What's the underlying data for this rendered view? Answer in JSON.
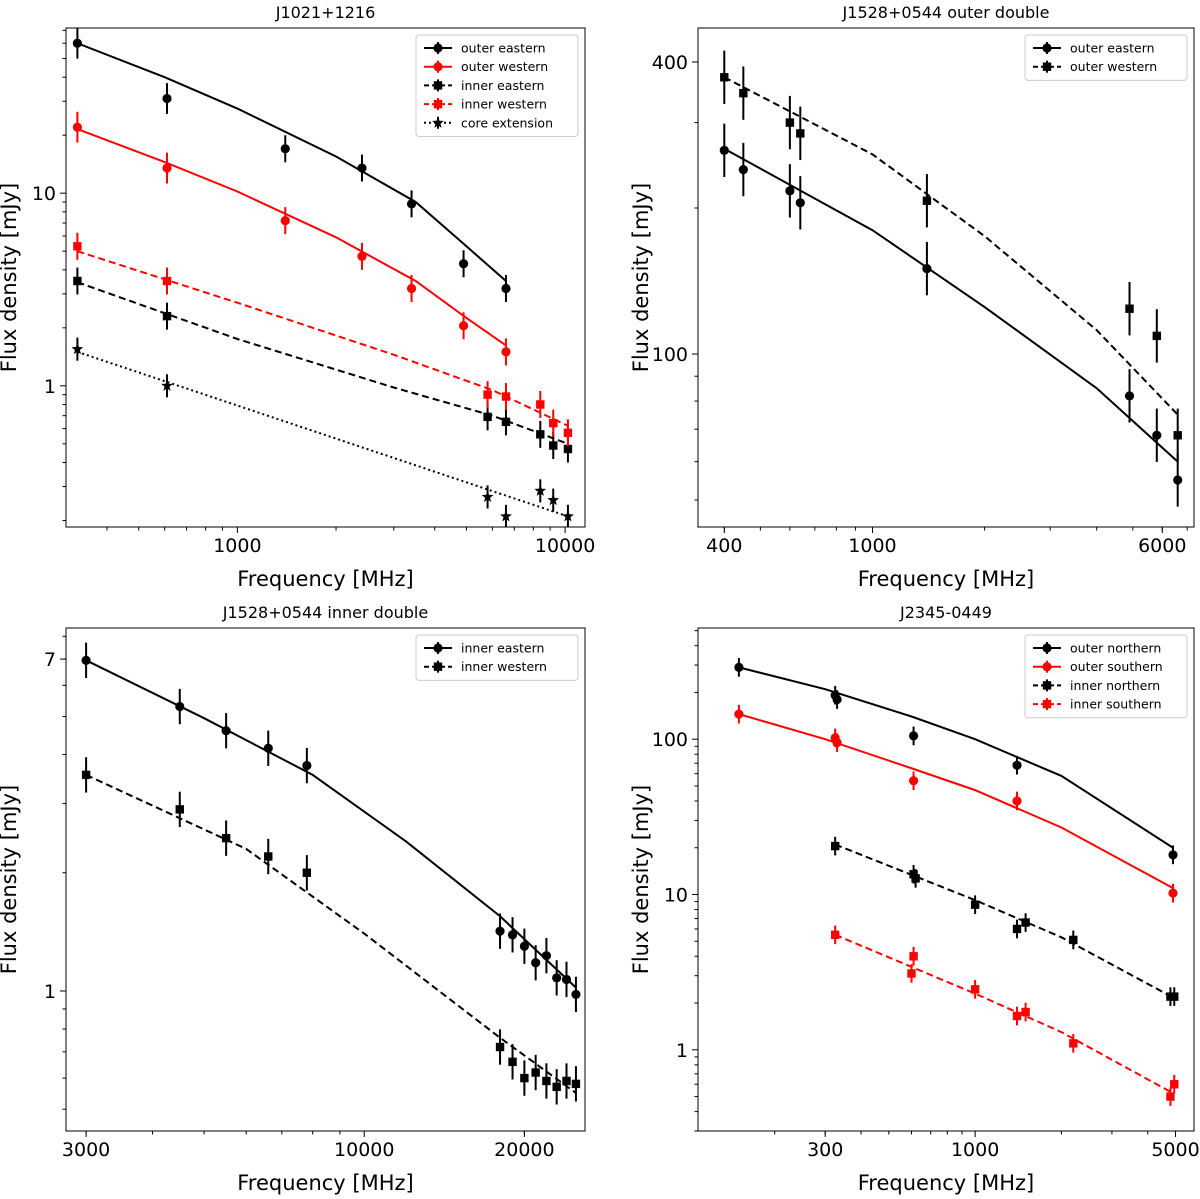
{
  "figure": {
    "description": "Radio spectra of double-double radio galaxies"
  },
  "chart_data": [
    {
      "type": "scatter",
      "title": "J1021+1216",
      "xlabel": "Frequency [MHz]",
      "ylabel": "Flux density [mJy]",
      "xscale": "log",
      "yscale": "log",
      "xlim": [
        300,
        11500
      ],
      "ylim": [
        0.185,
        72
      ],
      "xticks": [
        {
          "v": 1000,
          "label": "1000"
        },
        {
          "v": 10000,
          "label": "10000"
        }
      ],
      "yticks": [
        {
          "v": 1,
          "label": "1"
        },
        {
          "v": 10,
          "label": "10"
        }
      ],
      "legend_position": "top-right",
      "series": [
        {
          "name": "outer eastern",
          "color": "#000000",
          "marker": "circle",
          "line": "solid",
          "x": [
            325,
            610,
            1400,
            2400,
            3400,
            4900,
            6600
          ],
          "y": [
            60,
            31,
            17,
            13.5,
            8.8,
            4.3,
            3.2
          ],
          "err": [
            0.08,
            0.08,
            0.07,
            0.07,
            0.07,
            0.07,
            0.07
          ],
          "fit_x": [
            325,
            600,
            1000,
            2000,
            3500,
            5000,
            6600
          ],
          "fit_y": [
            60,
            40,
            27.5,
            15.5,
            9,
            5.3,
            3.5
          ]
        },
        {
          "name": "outer western",
          "color": "#ff0000",
          "marker": "circle",
          "line": "solid",
          "x": [
            325,
            610,
            1400,
            2400,
            3400,
            4900,
            6600
          ],
          "y": [
            22,
            13.5,
            7.2,
            4.7,
            3.2,
            2.05,
            1.5
          ],
          "err": [
            0.08,
            0.08,
            0.07,
            0.07,
            0.07,
            0.07,
            0.07
          ],
          "fit_x": [
            325,
            600,
            1000,
            2000,
            3500,
            5000,
            6600
          ],
          "fit_y": [
            21.5,
            14.5,
            10.2,
            5.9,
            3.5,
            2.25,
            1.62
          ]
        },
        {
          "name": "inner eastern",
          "color": "#000000",
          "marker": "square",
          "line": "dashed",
          "x": [
            325,
            610,
            5800,
            6600,
            8400,
            9200,
            10200
          ],
          "y": [
            3.5,
            2.3,
            0.69,
            0.65,
            0.56,
            0.49,
            0.47
          ],
          "err": [
            0.07,
            0.07,
            0.07,
            0.07,
            0.07,
            0.07,
            0.07
          ],
          "fit_x": [
            325,
            1000,
            3000,
            6000,
            10200
          ],
          "fit_y": [
            3.45,
            1.75,
            0.98,
            0.7,
            0.5
          ]
        },
        {
          "name": "inner western",
          "color": "#ff0000",
          "marker": "square",
          "line": "dashed",
          "x": [
            325,
            610,
            5800,
            6600,
            8400,
            9200,
            10200
          ],
          "y": [
            5.3,
            3.5,
            0.9,
            0.88,
            0.8,
            0.64,
            0.57
          ],
          "err": [
            0.07,
            0.07,
            0.07,
            0.07,
            0.07,
            0.07,
            0.07
          ],
          "fit_x": [
            325,
            1000,
            3000,
            6000,
            10200
          ],
          "fit_y": [
            5.0,
            2.7,
            1.45,
            0.95,
            0.62
          ]
        },
        {
          "name": "core extension",
          "color": "#000000",
          "marker": "star",
          "line": "dotted",
          "x": [
            325,
            610,
            5800,
            6600,
            8400,
            9200,
            10200
          ],
          "y": [
            1.55,
            1.0,
            0.265,
            0.21,
            0.285,
            0.255,
            0.21
          ],
          "err": [
            0.06,
            0.06,
            0.06,
            0.06,
            0.06,
            0.06,
            0.06
          ],
          "fit_x": [
            325,
            10200
          ],
          "fit_y": [
            1.5,
            0.21
          ]
        }
      ]
    },
    {
      "type": "scatter",
      "title": "J1528+0544 outer double",
      "xlabel": "Frequency [MHz]",
      "ylabel": "Flux density [mJy]",
      "xscale": "log",
      "yscale": "log",
      "xlim": [
        340,
        7300
      ],
      "ylim": [
        44,
        470
      ],
      "xticks": [
        {
          "v": 400,
          "label": "400"
        },
        {
          "v": 1000,
          "label": "1000"
        },
        {
          "v": 6000,
          "label": "6000"
        }
      ],
      "yticks": [
        {
          "v": 100,
          "label": "100"
        },
        {
          "v": 400,
          "label": "400"
        }
      ],
      "legend_position": "top-right",
      "series": [
        {
          "name": "outer eastern",
          "color": "#000000",
          "marker": "circle",
          "line": "solid",
          "x": [
            400,
            450,
            600,
            640,
            1400,
            4900,
            5800,
            6600
          ],
          "y": [
            263,
            240,
            217,
            205,
            150,
            82,
            68,
            55
          ],
          "err": [
            0.055,
            0.055,
            0.055,
            0.055,
            0.055,
            0.055,
            0.055,
            0.055
          ],
          "fit_x": [
            400,
            1000,
            2000,
            4000,
            6600
          ],
          "fit_y": [
            265,
            180,
            125,
            85,
            60
          ]
        },
        {
          "name": "outer western",
          "color": "#000000",
          "marker": "square",
          "line": "dashed",
          "x": [
            400,
            450,
            600,
            640,
            1400,
            4900,
            5800,
            6600
          ],
          "y": [
            372,
            345,
            300,
            285,
            207,
            124,
            109,
            68
          ],
          "err": [
            0.055,
            0.055,
            0.055,
            0.055,
            0.055,
            0.055,
            0.055,
            0.055
          ],
          "fit_x": [
            400,
            1000,
            2000,
            4000,
            6600
          ],
          "fit_y": [
            372,
            258,
            175,
            112,
            75
          ]
        }
      ]
    },
    {
      "type": "scatter",
      "title": "J1528+0544 inner double",
      "xlabel": "Frequency [MHz]",
      "ylabel": "Flux density [mJy]",
      "xscale": "log",
      "yscale": "log",
      "xlim": [
        2750,
        26000
      ],
      "ylim": [
        0.44,
        8.4
      ],
      "xticks": [
        {
          "v": 3000,
          "label": "3000"
        },
        {
          "v": 10000,
          "label": "10000"
        },
        {
          "v": 20000,
          "label": "20000"
        }
      ],
      "yticks": [
        {
          "v": 1,
          "label": "1"
        },
        {
          "v": 7,
          "label": "7"
        }
      ],
      "legend_position": "top-right",
      "series": [
        {
          "name": "inner eastern",
          "color": "#000000",
          "marker": "circle",
          "line": "solid",
          "x": [
            3000,
            4500,
            5500,
            6600,
            7800,
            18000,
            19000,
            20000,
            21000,
            22000,
            23000,
            24000,
            25000
          ],
          "y": [
            6.95,
            5.3,
            4.6,
            4.15,
            3.75,
            1.42,
            1.39,
            1.3,
            1.18,
            1.23,
            1.08,
            1.07,
            0.98
          ],
          "err": [
            0.045,
            0.045,
            0.045,
            0.045,
            0.045,
            0.045,
            0.045,
            0.045,
            0.045,
            0.045,
            0.045,
            0.045,
            0.045
          ],
          "fit_x": [
            3000,
            5000,
            8000,
            12000,
            18000,
            25000
          ],
          "fit_y": [
            6.95,
            4.95,
            3.55,
            2.4,
            1.55,
            1.02
          ]
        },
        {
          "name": "inner western",
          "color": "#000000",
          "marker": "square",
          "line": "dashed",
          "x": [
            3000,
            4500,
            5500,
            6600,
            7800,
            18000,
            19000,
            20000,
            21000,
            22000,
            23000,
            24000,
            25000
          ],
          "y": [
            3.55,
            2.9,
            2.45,
            2.2,
            2.0,
            0.72,
            0.66,
            0.6,
            0.62,
            0.59,
            0.57,
            0.59,
            0.58
          ],
          "err": [
            0.045,
            0.045,
            0.045,
            0.045,
            0.045,
            0.045,
            0.045,
            0.045,
            0.045,
            0.045,
            0.045,
            0.045,
            0.045
          ],
          "fit_x": [
            3000,
            6000,
            10000,
            18000,
            25000
          ],
          "fit_y": [
            3.55,
            2.3,
            1.4,
            0.76,
            0.55
          ]
        }
      ]
    },
    {
      "type": "scatter",
      "title": "J2345-0449",
      "xlabel": "Frequency [MHz]",
      "ylabel": "Flux density [mJy]",
      "xscale": "log",
      "yscale": "log",
      "xlim": [
        108,
        5800
      ],
      "ylim": [
        0.3,
        520
      ],
      "xticks": [
        {
          "v": 300,
          "label": "300"
        },
        {
          "v": 1000,
          "label": "1000"
        },
        {
          "v": 5000,
          "label": "5000"
        }
      ],
      "yticks": [
        {
          "v": 1,
          "label": "1"
        },
        {
          "v": 10,
          "label": "10"
        },
        {
          "v": 100,
          "label": "100"
        }
      ],
      "legend_position": "top-right",
      "series": [
        {
          "name": "outer northern",
          "color": "#000000",
          "marker": "circle",
          "line": "solid",
          "x": [
            150,
            325,
            330,
            610,
            1400,
            4900
          ],
          "y": [
            290,
            192,
            180,
            105,
            68,
            18
          ],
          "err": [
            0.06,
            0.06,
            0.06,
            0.06,
            0.06,
            0.06
          ],
          "fit_x": [
            150,
            300,
            600,
            1000,
            2000,
            4900
          ],
          "fit_y": [
            290,
            210,
            140,
            100,
            58,
            20
          ]
        },
        {
          "name": "outer southern",
          "color": "#ff0000",
          "marker": "circle",
          "line": "solid",
          "x": [
            150,
            325,
            330,
            610,
            1400,
            4900
          ],
          "y": [
            145,
            102,
            95,
            54,
            40,
            10.2
          ],
          "err": [
            0.06,
            0.06,
            0.06,
            0.06,
            0.06,
            0.06
          ],
          "fit_x": [
            150,
            300,
            600,
            1000,
            2000,
            4900
          ],
          "fit_y": [
            145,
            100,
            65,
            47,
            27,
            11
          ]
        },
        {
          "name": "inner northern",
          "color": "#000000",
          "marker": "square",
          "line": "dashed",
          "x": [
            325,
            610,
            620,
            1000,
            1400,
            1500,
            2200,
            4800,
            4950
          ],
          "y": [
            20.5,
            13.5,
            12.7,
            8.6,
            6.0,
            6.6,
            5.1,
            2.2,
            2.2
          ],
          "err": [
            0.06,
            0.06,
            0.06,
            0.06,
            0.06,
            0.06,
            0.06,
            0.06,
            0.06
          ],
          "fit_x": [
            325,
            1000,
            2000,
            4950
          ],
          "fit_y": [
            21,
            9.2,
            5.3,
            2.15
          ]
        },
        {
          "name": "inner southern",
          "color": "#ff0000",
          "marker": "square",
          "line": "dashed",
          "x": [
            325,
            600,
            610,
            1000,
            1400,
            1500,
            2200,
            4800,
            4950
          ],
          "y": [
            5.5,
            3.1,
            4.0,
            2.45,
            1.65,
            1.75,
            1.1,
            0.5,
            0.6
          ],
          "err": [
            0.06,
            0.06,
            0.06,
            0.06,
            0.06,
            0.06,
            0.06,
            0.06,
            0.06
          ],
          "fit_x": [
            325,
            1000,
            2000,
            4950
          ],
          "fit_y": [
            5.5,
            2.3,
            1.3,
            0.52
          ]
        }
      ]
    }
  ]
}
